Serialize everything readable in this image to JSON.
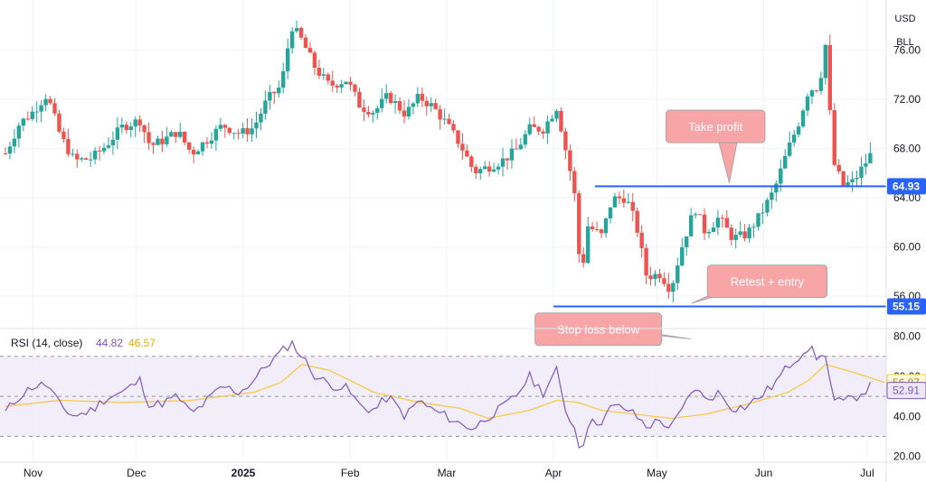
{
  "chart_data": {
    "type": "candlestick",
    "symbol": "BLL",
    "currency": "USD",
    "time_axis": {
      "labels": [
        {
          "text": "Nov",
          "date": "2024-11-01"
        },
        {
          "text": "Dec",
          "date": "2024-12-01"
        },
        {
          "text": "2025",
          "date": "2025-01-01"
        },
        {
          "text": "Feb",
          "date": "2025-02-01"
        },
        {
          "text": "Mar",
          "date": "2025-03-01"
        },
        {
          "text": "Apr",
          "date": "2025-04-01"
        },
        {
          "text": "May",
          "date": "2025-05-01"
        },
        {
          "text": "Jun",
          "date": "2025-06-01"
        },
        {
          "text": "Jul",
          "date": "2025-07-01"
        }
      ]
    },
    "price_axis": {
      "ticks": [
        "56.00",
        "60.00",
        "64.00",
        "68.00",
        "72.00",
        "76.00"
      ],
      "range": [
        53.5,
        79.5
      ]
    },
    "price_path": [
      [
        "2024-10-24",
        67.6
      ],
      [
        "2024-10-28",
        70.0
      ],
      [
        "2024-11-01",
        71.0
      ],
      [
        "2024-11-05",
        72.4
      ],
      [
        "2024-11-09",
        69.0
      ],
      [
        "2024-11-13",
        67.0
      ],
      [
        "2024-11-18",
        67.2
      ],
      [
        "2024-11-22",
        68.2
      ],
      [
        "2024-11-27",
        69.8
      ],
      [
        "2024-12-02",
        70.3
      ],
      [
        "2024-12-05",
        68.2
      ],
      [
        "2024-12-09",
        68.7
      ],
      [
        "2024-12-13",
        69.4
      ],
      [
        "2024-12-17",
        67.6
      ],
      [
        "2024-12-21",
        68.6
      ],
      [
        "2024-12-26",
        69.9
      ],
      [
        "2024-12-31",
        69.2
      ],
      [
        "2025-01-04",
        69.7
      ],
      [
        "2025-01-08",
        72.0
      ],
      [
        "2025-01-12",
        73.1
      ],
      [
        "2025-01-15",
        78.0
      ],
      [
        "2025-01-18",
        76.8
      ],
      [
        "2025-01-22",
        74.5
      ],
      [
        "2025-01-26",
        73.1
      ],
      [
        "2025-01-31",
        73.6
      ],
      [
        "2025-02-04",
        71.4
      ],
      [
        "2025-02-08",
        71.0
      ],
      [
        "2025-02-12",
        72.3
      ],
      [
        "2025-02-17",
        70.8
      ],
      [
        "2025-02-21",
        72.2
      ],
      [
        "2025-02-25",
        71.4
      ],
      [
        "2025-03-01",
        70.0
      ],
      [
        "2025-03-05",
        68.3
      ],
      [
        "2025-03-09",
        66.1
      ],
      [
        "2025-03-13",
        66.5
      ],
      [
        "2025-03-17",
        67.0
      ],
      [
        "2025-03-21",
        67.8
      ],
      [
        "2025-03-25",
        69.6
      ],
      [
        "2025-03-29",
        69.6
      ],
      [
        "2025-04-02",
        71.4
      ],
      [
        "2025-04-04",
        68.6
      ],
      [
        "2025-04-07",
        64.6
      ],
      [
        "2025-04-08",
        60.8
      ],
      [
        "2025-04-09",
        57.4
      ],
      [
        "2025-04-11",
        61.7
      ],
      [
        "2025-04-15",
        60.9
      ],
      [
        "2025-04-18",
        63.9
      ],
      [
        "2025-04-22",
        64.0
      ],
      [
        "2025-04-25",
        61.8
      ],
      [
        "2025-04-28",
        57.6
      ],
      [
        "2025-05-02",
        57.8
      ],
      [
        "2025-05-05",
        56.5
      ],
      [
        "2025-05-08",
        59.8
      ],
      [
        "2025-05-12",
        63.2
      ],
      [
        "2025-05-15",
        61.2
      ],
      [
        "2025-05-19",
        62.4
      ],
      [
        "2025-05-23",
        60.7
      ],
      [
        "2025-05-27",
        61.0
      ],
      [
        "2025-05-31",
        62.6
      ],
      [
        "2025-06-04",
        64.6
      ],
      [
        "2025-06-08",
        67.9
      ],
      [
        "2025-06-11",
        70.0
      ],
      [
        "2025-06-14",
        72.8
      ],
      [
        "2025-06-17",
        73.0
      ],
      [
        "2025-06-19",
        76.6
      ],
      [
        "2025-06-21",
        67.0
      ],
      [
        "2025-06-24",
        65.0
      ],
      [
        "2025-06-27",
        65.3
      ],
      [
        "2025-07-02",
        67.5
      ]
    ],
    "last_price": 64.93,
    "levels": [
      {
        "price": 64.93,
        "label": "64.93",
        "from": "2025-04-13",
        "to": "2025-07-06"
      },
      {
        "price": 55.15,
        "label": "55.15",
        "from": "2025-04-01",
        "to": "2025-07-06"
      }
    ],
    "callouts": [
      {
        "text": "Take profit",
        "date": "2025-05-18",
        "price": 69.8,
        "tip_date": "2025-05-22",
        "tip_price": 65.2
      },
      {
        "text": "Retest + entry",
        "date": "2025-06-02",
        "price": 57.2,
        "tip_date": "2025-05-11",
        "tip_price": 55.4
      },
      {
        "text": "Stop loss below",
        "date": "2025-04-14",
        "price": 53.3,
        "tip_date": "2025-05-11",
        "tip_price": 52.5
      }
    ],
    "rsi": {
      "legend": {
        "label": "RSI (14, close)",
        "value": "44.82",
        "ma_value": "46.57"
      },
      "axis_ticks": [
        "20.00",
        "40.00",
        "60.00",
        "80.00"
      ],
      "range": [
        18,
        83
      ],
      "band": [
        30,
        70
      ],
      "midline": 50,
      "last": {
        "rsi": "52.91",
        "ma": "56.87"
      },
      "rsi_path": [
        [
          "2024-10-24",
          42
        ],
        [
          "2024-10-28",
          50
        ],
        [
          "2024-11-01",
          55
        ],
        [
          "2024-11-05",
          56
        ],
        [
          "2024-11-09",
          45
        ],
        [
          "2024-11-13",
          40
        ],
        [
          "2024-11-18",
          43
        ],
        [
          "2024-11-22",
          49
        ],
        [
          "2024-11-27",
          52
        ],
        [
          "2024-12-02",
          58
        ],
        [
          "2024-12-05",
          45
        ],
        [
          "2024-12-09",
          47
        ],
        [
          "2024-12-13",
          50
        ],
        [
          "2024-12-17",
          41
        ],
        [
          "2024-12-21",
          47
        ],
        [
          "2024-12-26",
          55
        ],
        [
          "2024-12-31",
          52
        ],
        [
          "2025-01-04",
          58
        ],
        [
          "2025-01-08",
          66
        ],
        [
          "2025-01-12",
          72
        ],
        [
          "2025-01-15",
          77
        ],
        [
          "2025-01-18",
          70
        ],
        [
          "2025-01-22",
          60
        ],
        [
          "2025-01-26",
          56
        ],
        [
          "2025-01-31",
          54
        ],
        [
          "2025-02-04",
          45
        ],
        [
          "2025-02-08",
          43
        ],
        [
          "2025-02-12",
          50
        ],
        [
          "2025-02-17",
          40
        ],
        [
          "2025-02-21",
          48
        ],
        [
          "2025-02-25",
          43
        ],
        [
          "2025-03-01",
          40
        ],
        [
          "2025-03-05",
          36
        ],
        [
          "2025-03-09",
          34
        ],
        [
          "2025-03-13",
          40
        ],
        [
          "2025-03-17",
          44
        ],
        [
          "2025-03-21",
          50
        ],
        [
          "2025-03-25",
          60
        ],
        [
          "2025-03-29",
          52
        ],
        [
          "2025-04-02",
          63
        ],
        [
          "2025-04-04",
          45
        ],
        [
          "2025-04-07",
          35
        ],
        [
          "2025-04-08",
          27
        ],
        [
          "2025-04-09",
          23
        ],
        [
          "2025-04-11",
          36
        ],
        [
          "2025-04-15",
          38
        ],
        [
          "2025-04-18",
          45
        ],
        [
          "2025-04-22",
          44
        ],
        [
          "2025-04-25",
          40
        ],
        [
          "2025-04-28",
          35
        ],
        [
          "2025-05-02",
          38
        ],
        [
          "2025-05-05",
          34
        ],
        [
          "2025-05-08",
          42
        ],
        [
          "2025-05-12",
          55
        ],
        [
          "2025-05-15",
          48
        ],
        [
          "2025-05-19",
          52
        ],
        [
          "2025-05-23",
          44
        ],
        [
          "2025-05-27",
          45
        ],
        [
          "2025-05-31",
          50
        ],
        [
          "2025-06-04",
          56
        ],
        [
          "2025-06-08",
          65
        ],
        [
          "2025-06-11",
          70
        ],
        [
          "2025-06-14",
          75
        ],
        [
          "2025-06-17",
          68
        ],
        [
          "2025-06-19",
          72
        ],
        [
          "2025-06-21",
          48
        ],
        [
          "2025-06-24",
          47
        ],
        [
          "2025-06-27",
          49
        ],
        [
          "2025-07-02",
          55
        ]
      ],
      "ma_path": [
        [
          "2024-10-24",
          45
        ],
        [
          "2024-11-09",
          48
        ],
        [
          "2024-11-27",
          47
        ],
        [
          "2024-12-17",
          48
        ],
        [
          "2025-01-04",
          52
        ],
        [
          "2025-01-12",
          57
        ],
        [
          "2025-01-18",
          66
        ],
        [
          "2025-01-26",
          63
        ],
        [
          "2025-02-08",
          52
        ],
        [
          "2025-02-21",
          47
        ],
        [
          "2025-03-05",
          44
        ],
        [
          "2025-03-13",
          39
        ],
        [
          "2025-03-25",
          43
        ],
        [
          "2025-04-02",
          48
        ],
        [
          "2025-04-08",
          47
        ],
        [
          "2025-04-15",
          43
        ],
        [
          "2025-04-25",
          41
        ],
        [
          "2025-05-05",
          39
        ],
        [
          "2025-05-15",
          41
        ],
        [
          "2025-05-27",
          46
        ],
        [
          "2025-06-08",
          52
        ],
        [
          "2025-06-14",
          58
        ],
        [
          "2025-06-19",
          66
        ],
        [
          "2025-06-27",
          62
        ],
        [
          "2025-07-06",
          57
        ]
      ]
    }
  },
  "colors": {
    "up": "#26a69a",
    "down": "#ef5350",
    "level_line": "#2962ff",
    "callout_fill": "#f8a5a8",
    "callout_text": "#ffffff",
    "rsi_line": "#7e57c2",
    "rsi_ma": "#f7c948",
    "rsi_band": "#ede7f6",
    "grid": "#f0f3fa",
    "axis_text": "#131722"
  }
}
